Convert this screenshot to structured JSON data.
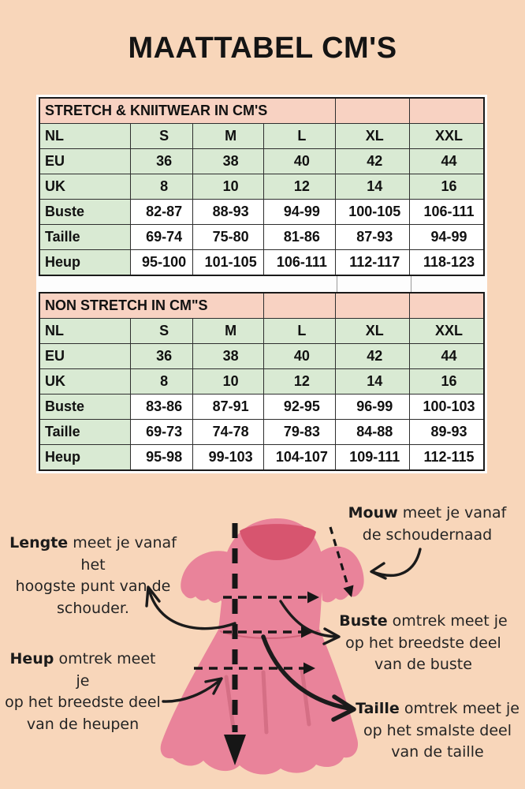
{
  "page": {
    "title": "MAATTABEL CM'S"
  },
  "colors": {
    "background": "#f8d6ba",
    "sheet_white": "#fdfdfd",
    "table_header_pink": "#f8d2c2",
    "table_green": "#d9ead3",
    "table_border": "#2e2e2e",
    "dress_pink": "#e9839a",
    "dress_neckline_dark": "#d7556f",
    "arrow_black": "#1b1b1b"
  },
  "size_tables": [
    {
      "title": "STRETCH & KNIITWEAR IN CM'S",
      "title_colspan": 4,
      "empty_header_cells": 2,
      "rows": [
        {
          "label": "NL",
          "green": true,
          "values": [
            "S",
            "M",
            "L",
            "XL",
            "XXL"
          ]
        },
        {
          "label": "EU",
          "green": true,
          "values": [
            "36",
            "38",
            "40",
            "42",
            "44"
          ]
        },
        {
          "label": "UK",
          "green": true,
          "values": [
            "8",
            "10",
            "12",
            "14",
            "16"
          ]
        },
        {
          "label": "Buste",
          "green": false,
          "values": [
            "82-87",
            "88-93",
            "94-99",
            "100-105",
            "106-111"
          ]
        },
        {
          "label": "Taille",
          "green": false,
          "values": [
            "69-74",
            "75-80",
            "81-86",
            "87-93",
            "94-99"
          ]
        },
        {
          "label": "Heup",
          "green": false,
          "values": [
            "95-100",
            "101-105",
            "106-111",
            "112-117",
            "118-123"
          ]
        }
      ]
    },
    {
      "title": "NON STRETCH IN CM\"S",
      "title_colspan": 3,
      "empty_header_cells": 3,
      "rows": [
        {
          "label": "NL",
          "green": true,
          "values": [
            "S",
            "M",
            "L",
            "XL",
            "XXL"
          ]
        },
        {
          "label": "EU",
          "green": true,
          "values": [
            "36",
            "38",
            "40",
            "42",
            "44"
          ]
        },
        {
          "label": "UK",
          "green": true,
          "values": [
            "8",
            "10",
            "12",
            "14",
            "16"
          ]
        },
        {
          "label": "Buste",
          "green": false,
          "values": [
            "83-86",
            "87-91",
            "92-95",
            "96-99",
            "100-103"
          ]
        },
        {
          "label": "Taille",
          "green": false,
          "values": [
            "69-73",
            "74-78",
            "79-83",
            "84-88",
            "89-93"
          ]
        },
        {
          "label": "Heup",
          "green": false,
          "values": [
            "95-98",
            "99-103",
            "104-107",
            "109-111",
            "112-115"
          ]
        }
      ]
    }
  ],
  "annotations": {
    "lengte": {
      "keyword": "Lengte",
      "line1": " meet je vanaf het",
      "line2": "hoogste punt van de",
      "line3": "schouder."
    },
    "mouw": {
      "keyword": "Mouw",
      "line1": " meet je vanaf",
      "line2": "de schoudernaad"
    },
    "buste": {
      "keyword": "Buste",
      "line1": " omtrek meet je",
      "line2": "op het breedste deel",
      "line3": "van de buste"
    },
    "heup": {
      "keyword": "Heup",
      "line1": " omtrek meet je",
      "line2": "op het breedste deel",
      "line3": "van de heupen"
    },
    "taille": {
      "keyword": "Taille",
      "line1": " omtrek meet je",
      "line2": "op het smalste deel",
      "line3": "van de taille"
    }
  }
}
